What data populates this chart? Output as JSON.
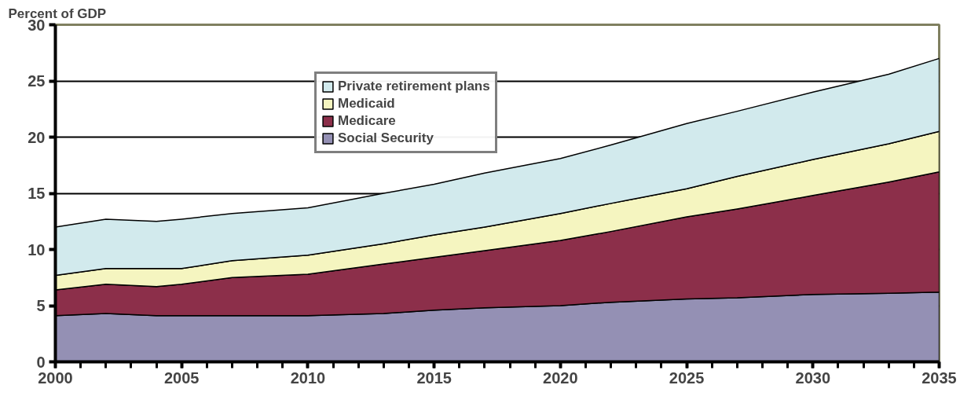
{
  "chart_data": {
    "type": "area",
    "stacked": true,
    "ylabel": "Percent of GDP",
    "x": [
      2000,
      2002,
      2004,
      2005,
      2007,
      2010,
      2013,
      2015,
      2017,
      2020,
      2022,
      2025,
      2027,
      2030,
      2033,
      2035
    ],
    "series": [
      {
        "name": "Social Security",
        "color": "#9490b4",
        "values": [
          4.1,
          4.3,
          4.1,
          4.1,
          4.1,
          4.1,
          4.3,
          4.6,
          4.8,
          5.0,
          5.3,
          5.6,
          5.7,
          6.0,
          6.1,
          6.2
        ]
      },
      {
        "name": "Medicare",
        "color": "#8c2f4a",
        "values": [
          2.3,
          2.6,
          2.6,
          2.8,
          3.4,
          3.7,
          4.4,
          4.7,
          5.1,
          5.8,
          6.3,
          7.3,
          7.9,
          8.8,
          9.9,
          10.7
        ]
      },
      {
        "name": "Medicaid",
        "color": "#f5f5c0",
        "values": [
          1.3,
          1.4,
          1.6,
          1.4,
          1.5,
          1.7,
          1.8,
          2.0,
          2.1,
          2.4,
          2.5,
          2.5,
          2.9,
          3.2,
          3.4,
          3.6
        ]
      },
      {
        "name": "Private retirement plans",
        "color": "#d2eaed",
        "values": [
          4.3,
          4.4,
          4.2,
          4.4,
          4.2,
          4.2,
          4.5,
          4.5,
          4.8,
          4.9,
          5.2,
          5.8,
          5.8,
          6.0,
          6.2,
          6.5
        ]
      }
    ],
    "xlim": [
      2000,
      2035
    ],
    "xticks": [
      2000,
      2005,
      2010,
      2015,
      2020,
      2025,
      2030,
      2035
    ],
    "ylim": [
      0,
      30
    ],
    "yticks": [
      0,
      5,
      10,
      15,
      20,
      25,
      30
    ],
    "grid": "y",
    "legend": "top"
  }
}
